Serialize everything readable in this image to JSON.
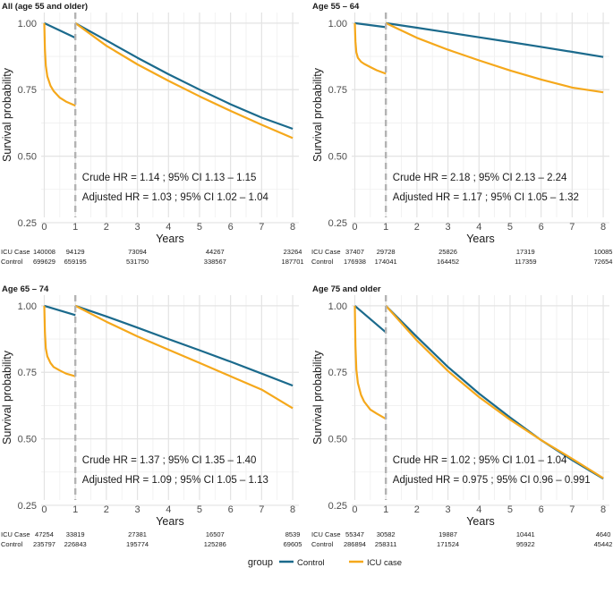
{
  "colors": {
    "control": "#1b6a8c",
    "icu": "#f5a81b",
    "grid_major": "#e3e3e3",
    "grid_minor": "#efefef",
    "dash": "#b3b3b3",
    "text": "#1a1a1a",
    "axis_text": "#4d4d4d"
  },
  "legend": {
    "title": "group",
    "items": [
      {
        "label": "Control",
        "color": "#1b6a8c"
      },
      {
        "label": "ICU case",
        "color": "#f5a81b"
      }
    ]
  },
  "chart_data": [
    {
      "type": "line",
      "title": "All (age 55 and older)",
      "xlabel": "Years",
      "ylabel": "Survival probability",
      "xlim": [
        -0.1,
        8.2
      ],
      "ylim": [
        0.27,
        1.04
      ],
      "x_ticks": [
        0,
        1,
        2,
        3,
        4,
        5,
        6,
        7,
        8
      ],
      "y_ticks": [
        0.25,
        0.5,
        0.75,
        1.0
      ],
      "y_tick_labels": [
        "0.25",
        "0.50",
        "0.75",
        "1.00"
      ],
      "landmark_x": 1,
      "series": [
        {
          "name": "Control",
          "segments": [
            {
              "x": [
                0,
                1
              ],
              "y": [
                1.0,
                0.945
              ]
            },
            {
              "x": [
                1,
                2,
                3,
                4,
                5,
                6,
                7,
                8
              ],
              "y": [
                1.0,
                0.935,
                0.87,
                0.808,
                0.75,
                0.695,
                0.645,
                0.603
              ]
            }
          ]
        },
        {
          "name": "ICU case",
          "segments": [
            {
              "x": [
                0,
                0.02,
                0.05,
                0.1,
                0.2,
                0.3,
                0.5,
                0.7,
                1.0
              ],
              "y": [
                1.0,
                0.9,
                0.84,
                0.8,
                0.765,
                0.745,
                0.72,
                0.705,
                0.69
              ]
            },
            {
              "x": [
                1,
                2,
                3,
                4,
                5,
                6,
                7,
                8
              ],
              "y": [
                1.0,
                0.915,
                0.845,
                0.783,
                0.725,
                0.67,
                0.618,
                0.568
              ]
            }
          ]
        }
      ],
      "annotations": [
        "Crude HR = 1.14 ; 95% CI 1.13 – 1.15",
        "Adjusted HR = 1.03 ; 95% CI 1.02 – 1.04"
      ],
      "risk_table": {
        "rows": [
          {
            "label": "ICU Case",
            "values": [
              "140008",
              "94129",
              "73094",
              "44267",
              "23264"
            ]
          },
          {
            "label": "Control",
            "values": [
              "699629",
              "659195",
              "531750",
              "338567",
              "187701"
            ]
          }
        ],
        "x": [
          0,
          1,
          3,
          5.5,
          8
        ]
      }
    },
    {
      "type": "line",
      "title": "Age 55 – 64",
      "xlabel": "Years",
      "ylabel": "Survival probability",
      "xlim": [
        -0.1,
        8.2
      ],
      "ylim": [
        0.27,
        1.04
      ],
      "x_ticks": [
        0,
        1,
        2,
        3,
        4,
        5,
        6,
        7,
        8
      ],
      "y_ticks": [
        0.25,
        0.5,
        0.75,
        1.0
      ],
      "y_tick_labels": [
        "0.25",
        "0.50",
        "0.75",
        "1.00"
      ],
      "landmark_x": 1,
      "series": [
        {
          "name": "Control",
          "segments": [
            {
              "x": [
                0,
                1
              ],
              "y": [
                1.0,
                0.985
              ]
            },
            {
              "x": [
                1,
                2,
                3,
                4,
                5,
                6,
                7,
                8
              ],
              "y": [
                1.0,
                0.983,
                0.965,
                0.947,
                0.929,
                0.911,
                0.892,
                0.873
              ]
            }
          ]
        },
        {
          "name": "ICU case",
          "segments": [
            {
              "x": [
                0,
                0.02,
                0.05,
                0.1,
                0.2,
                0.3,
                0.5,
                0.7,
                1.0
              ],
              "y": [
                1.0,
                0.93,
                0.89,
                0.87,
                0.855,
                0.847,
                0.835,
                0.823,
                0.81
              ]
            },
            {
              "x": [
                1,
                2,
                3,
                4,
                5,
                6,
                7,
                8
              ],
              "y": [
                1.0,
                0.945,
                0.9,
                0.86,
                0.822,
                0.788,
                0.758,
                0.74
              ]
            }
          ]
        }
      ],
      "annotations": [
        "Crude HR = 2.18 ; 95% CI 2.13 – 2.24",
        "Adjusted HR = 1.17 ; 95% CI 1.05 – 1.32"
      ],
      "risk_table": {
        "rows": [
          {
            "label": "ICU Case",
            "values": [
              "37407",
              "29728",
              "25826",
              "17319",
              "10085"
            ]
          },
          {
            "label": "Control",
            "values": [
              "176938",
              "174041",
              "164452",
              "117359",
              "72654"
            ]
          }
        ],
        "x": [
          0,
          1,
          3,
          5.5,
          8
        ]
      }
    },
    {
      "type": "line",
      "title": "Age 65 – 74",
      "xlabel": "Years",
      "ylabel": "Survival probability",
      "xlim": [
        -0.1,
        8.2
      ],
      "ylim": [
        0.27,
        1.04
      ],
      "x_ticks": [
        0,
        1,
        2,
        3,
        4,
        5,
        6,
        7,
        8
      ],
      "y_ticks": [
        0.25,
        0.5,
        0.75,
        1.0
      ],
      "y_tick_labels": [
        "0.25",
        "0.50",
        "0.75",
        "1.00"
      ],
      "landmark_x": 1,
      "series": [
        {
          "name": "Control",
          "segments": [
            {
              "x": [
                0,
                1
              ],
              "y": [
                1.0,
                0.965
              ]
            },
            {
              "x": [
                1,
                2,
                3,
                4,
                5,
                6,
                7,
                8
              ],
              "y": [
                1.0,
                0.96,
                0.918,
                0.875,
                0.833,
                0.79,
                0.745,
                0.7
              ]
            }
          ]
        },
        {
          "name": "ICU case",
          "segments": [
            {
              "x": [
                0,
                0.02,
                0.05,
                0.1,
                0.2,
                0.3,
                0.5,
                0.7,
                1.0
              ],
              "y": [
                1.0,
                0.9,
                0.84,
                0.81,
                0.785,
                0.77,
                0.757,
                0.745,
                0.735
              ]
            },
            {
              "x": [
                1,
                2,
                3,
                4,
                5,
                6,
                7,
                8
              ],
              "y": [
                1.0,
                0.94,
                0.885,
                0.835,
                0.785,
                0.735,
                0.685,
                0.615
              ]
            }
          ]
        }
      ],
      "annotations": [
        "Crude HR = 1.37 ; 95% CI 1.35 – 1.40",
        "Adjusted HR = 1.09 ; 95% CI 1.05 – 1.13"
      ],
      "risk_table": {
        "rows": [
          {
            "label": "ICU Case",
            "values": [
              "47254",
              "33819",
              "27381",
              "16507",
              "8539"
            ]
          },
          {
            "label": "Control",
            "values": [
              "235797",
              "226843",
              "195774",
              "125286",
              "69605"
            ]
          }
        ],
        "x": [
          0,
          1,
          3,
          5.5,
          8
        ]
      }
    },
    {
      "type": "line",
      "title": "Age 75 and older",
      "xlabel": "Years",
      "ylabel": "Survival probability",
      "xlim": [
        -0.1,
        8.2
      ],
      "ylim": [
        0.27,
        1.04
      ],
      "x_ticks": [
        0,
        1,
        2,
        3,
        4,
        5,
        6,
        7,
        8
      ],
      "y_ticks": [
        0.25,
        0.5,
        0.75,
        1.0
      ],
      "y_tick_labels": [
        "0.25",
        "0.50",
        "0.75",
        "1.00"
      ],
      "landmark_x": 1,
      "series": [
        {
          "name": "Control",
          "segments": [
            {
              "x": [
                0,
                1
              ],
              "y": [
                1.0,
                0.9
              ]
            },
            {
              "x": [
                1,
                2,
                3,
                4,
                5,
                6,
                7,
                8
              ],
              "y": [
                1.0,
                0.883,
                0.77,
                0.67,
                0.58,
                0.495,
                0.42,
                0.35
              ]
            }
          ]
        },
        {
          "name": "ICU case",
          "segments": [
            {
              "x": [
                0,
                0.02,
                0.05,
                0.1,
                0.2,
                0.3,
                0.5,
                0.7,
                1.0
              ],
              "y": [
                1.0,
                0.85,
                0.76,
                0.71,
                0.665,
                0.64,
                0.61,
                0.595,
                0.575
              ]
            },
            {
              "x": [
                1,
                2,
                3,
                4,
                5,
                6,
                7,
                8
              ],
              "y": [
                1.0,
                0.87,
                0.755,
                0.657,
                0.572,
                0.495,
                0.425,
                0.352
              ]
            }
          ]
        }
      ],
      "annotations": [
        "Crude HR = 1.02 ; 95% CI 1.01 – 1.04",
        "Adjusted HR = 0.975 ; 95% CI 0.96 – 0.991"
      ],
      "risk_table": {
        "rows": [
          {
            "label": "ICU Case",
            "values": [
              "55347",
              "30582",
              "19887",
              "10441",
              "4640"
            ]
          },
          {
            "label": "Control",
            "values": [
              "286894",
              "258311",
              "171524",
              "95922",
              "45442"
            ]
          }
        ],
        "x": [
          0,
          1,
          3,
          5.5,
          8
        ]
      }
    }
  ]
}
